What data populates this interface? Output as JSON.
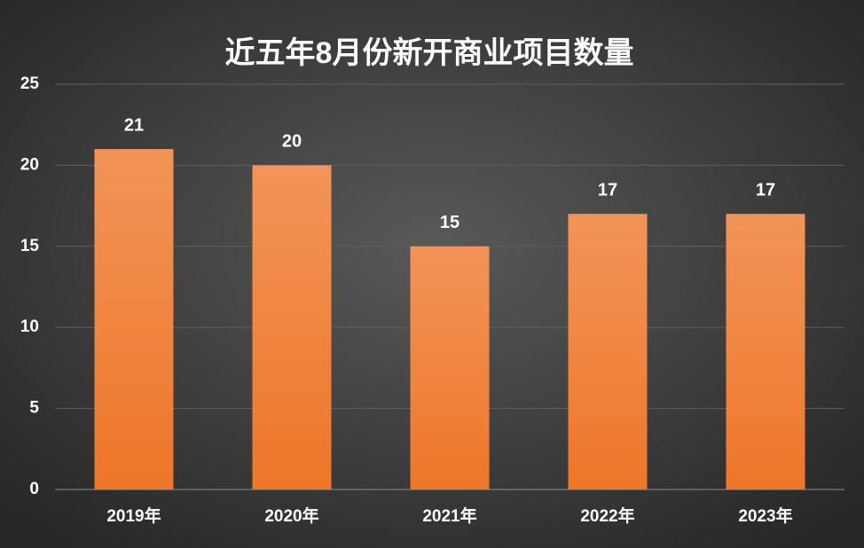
{
  "chart_data": {
    "type": "bar",
    "title": "近五年8月份新开商业项目数量",
    "categories": [
      "2019年",
      "2020年",
      "2021年",
      "2022年",
      "2023年"
    ],
    "values": [
      21,
      20,
      15,
      17,
      17
    ],
    "color": "#ee7629",
    "ylim": [
      0,
      25
    ],
    "yticks": [
      0,
      5,
      10,
      15,
      20,
      25
    ],
    "grid": true
  }
}
